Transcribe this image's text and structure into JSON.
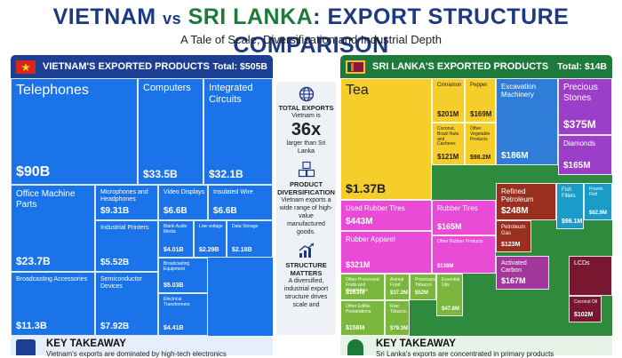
{
  "title": {
    "part1": "VIETNAM",
    "vs": "vs",
    "part2": "SRI LANKA",
    "part3": ": EXPORT STRUCTURE COMPARISON"
  },
  "subtitle": "A Tale of Scale, Diversification and Industrial Depth",
  "colors": {
    "vn_blue": "#1a73e8",
    "vn_header": "#1c3f93",
    "sl_header": "#1d7a3a",
    "vn_flag": "#da251d",
    "sl_flag": "#8d153a"
  },
  "vietnam": {
    "header": "VIETNAM'S EXPORTED PRODUCTS",
    "total": "Total: $505B",
    "takeaway_title": "KEY TAKEAWAY",
    "takeaway_text": "Vietnam's exports are dominated by high-tech electronics"
  },
  "srilanka": {
    "header": "SRI LANKA'S EXPORTED PRODUCTS",
    "total": "Total: $14B",
    "takeaway_title": "KEY TAKEAWAY",
    "takeaway_text": "Sri Lanka's exports are concentrated in primary products"
  },
  "middle": {
    "s1_icon": "globe-icon",
    "s1_title": "TOTAL EXPORTS",
    "s1_text_a": "Vietnam is",
    "s1_big": "36x",
    "s1_text_b": "larger than Sri Lanka",
    "s2_icon": "cubes-icon",
    "s2_title": "PRODUCT DIVERSIFICATION",
    "s2_text": "Vietnam exports a wide range of high-value manufactured goods.",
    "s3_icon": "growth-chart-icon",
    "s3_title": "STRUCTURE MATTERS",
    "s3_text": "A diversified, industrial export structure drives scale and"
  },
  "chart_data": [
    {
      "type": "treemap",
      "title": "VIETNAM'S EXPORTED PRODUCTS",
      "total": "Total: $505B",
      "items": [
        {
          "name": "Telephones",
          "label": "$90B",
          "value": 90
        },
        {
          "name": "Computers",
          "label": "$33.5B",
          "value": 33.5
        },
        {
          "name": "Integrated Circuits",
          "label": "$32.1B",
          "value": 32.1
        },
        {
          "name": "Office Machine Parts",
          "label": "$23.7B",
          "value": 23.7
        },
        {
          "name": "Microphones and Headphones",
          "label": "$9.31B",
          "value": 9.31
        },
        {
          "name": "Video Displays",
          "label": "$6.6B",
          "value": 6.6
        },
        {
          "name": "Insulated Wire",
          "label": "$6.6B",
          "value": 6.6
        },
        {
          "name": "Industrial Printers",
          "label": "$5.52B",
          "value": 5.52
        },
        {
          "name": "Blank Audio Media",
          "label": "$4.01B",
          "value": 4.01
        },
        {
          "name": "Low voltage",
          "label": "$2.29B",
          "value": 2.29
        },
        {
          "name": "Data Storage",
          "label": "$2.18B",
          "value": 2.18
        },
        {
          "name": "Broadcasting Accessories",
          "label": "$11.3B",
          "value": 11.3
        },
        {
          "name": "Semiconductor Devices",
          "label": "$7.92B",
          "value": 7.92
        },
        {
          "name": "Broadcasting Equipment",
          "label": "$5.03B",
          "value": 5.03
        },
        {
          "name": "Electrical Transformers",
          "label": "$4.41B",
          "value": 4.41
        }
      ]
    },
    {
      "type": "treemap",
      "title": "SRI LANKA'S EXPORTED PRODUCTS",
      "total": "Total: $14B",
      "items": [
        {
          "name": "Tea",
          "label": "$1.37B",
          "value": 1370
        },
        {
          "name": "Cinnamon",
          "label": "$201M",
          "value": 201
        },
        {
          "name": "Pepper",
          "label": "$169M",
          "value": 169
        },
        {
          "name": "Coconut, Brazil Nuts, and Cashews",
          "label": "$121M",
          "value": 121
        },
        {
          "name": "Other Vegetable Products",
          "label": "$98.2M",
          "value": 98.2
        },
        {
          "name": "Excavation Machinery",
          "label": "$186M",
          "value": 186
        },
        {
          "name": "Precious Stones",
          "label": "$375M",
          "value": 375
        },
        {
          "name": "Diamonds",
          "label": "$165M",
          "value": 165
        },
        {
          "name": "Used Rubber Tires",
          "label": "$443M",
          "value": 443
        },
        {
          "name": "Rubber Tires",
          "label": "$165M",
          "value": 165
        },
        {
          "name": "Rubber Apparel",
          "label": "$321M",
          "value": 321
        },
        {
          "name": "Other Rubber Products",
          "label": "$138M",
          "value": 138
        },
        {
          "name": "Refined Petroleum",
          "label": "$248M",
          "value": 248
        },
        {
          "name": "Petroleum Gas",
          "label": "$123M",
          "value": 123
        },
        {
          "name": "Fish Fillets",
          "label": "$96.1M",
          "value": 96.1
        },
        {
          "name": "Frozen Fish",
          "label": "$62.9M",
          "value": 62.9
        },
        {
          "name": "Activated Carbon",
          "label": "$167M",
          "value": 167
        },
        {
          "name": "Other Processed Fruits and Vegetables",
          "label": "$163M",
          "value": 163
        },
        {
          "name": "Animal Food",
          "label": "$37.2M",
          "value": 37.2
        },
        {
          "name": "Processed Tobacco",
          "label": "$52M",
          "value": 52
        },
        {
          "name": "Other Edible Preparations",
          "label": "$158M",
          "value": 158
        },
        {
          "name": "Raw Tobacco",
          "label": "$79.3M",
          "value": 79.3
        },
        {
          "name": "Essential Oils",
          "label": "$47.8M",
          "value": 47.8
        },
        {
          "name": "LCDs",
          "label": "",
          "value": null
        },
        {
          "name": "Coconut Oil",
          "label": "$102M",
          "value": 102
        }
      ]
    }
  ]
}
